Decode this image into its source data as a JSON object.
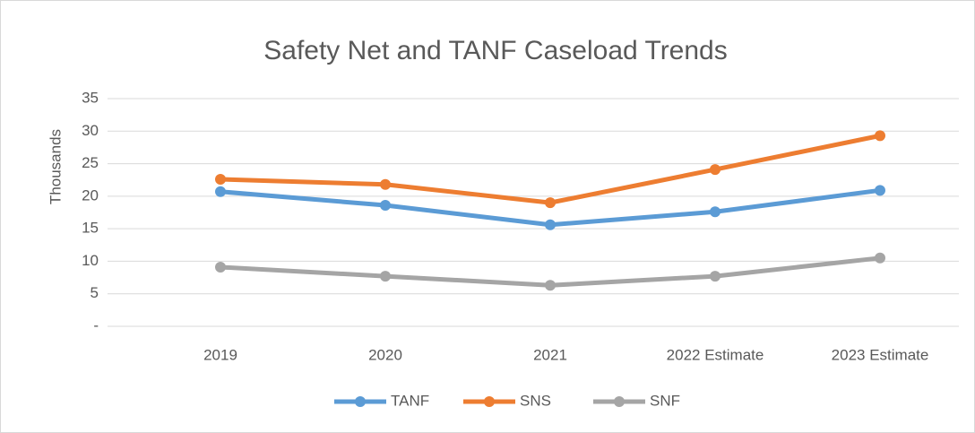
{
  "chart_data": {
    "type": "line",
    "title": "Safety Net and TANF Caseload Trends",
    "ylabel": "Thousands",
    "categories": [
      "2019",
      "2020",
      "2021",
      "2022 Estimate",
      "2023 Estimate"
    ],
    "series": [
      {
        "name": "TANF",
        "color": "#5b9bd5",
        "values": [
          20.7,
          18.6,
          15.6,
          17.6,
          20.9
        ]
      },
      {
        "name": "SNS",
        "color": "#ed7d31",
        "values": [
          22.6,
          21.8,
          19.0,
          24.1,
          29.3
        ]
      },
      {
        "name": "SNF",
        "color": "#a5a5a5",
        "values": [
          9.1,
          7.7,
          6.3,
          7.7,
          10.5
        ]
      }
    ],
    "ylim": [
      0,
      35
    ],
    "yticks": [
      {
        "value": 0,
        "label": "-"
      },
      5,
      10,
      15,
      20,
      25,
      30,
      35
    ],
    "grid": true,
    "legend": "bottom"
  }
}
